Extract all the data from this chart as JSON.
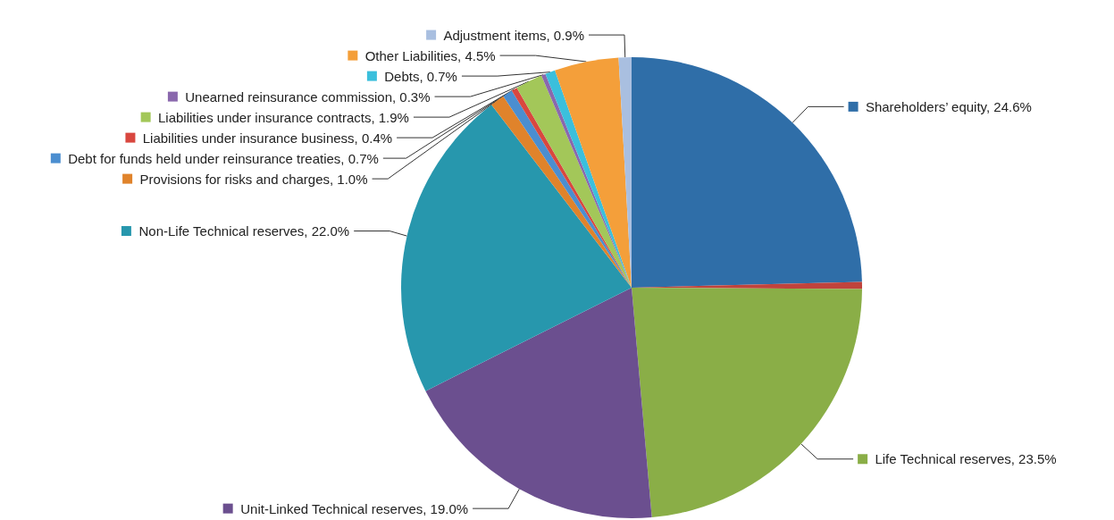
{
  "chart_data": {
    "type": "pie",
    "categories": [
      "Shareholders’ equity",
      null,
      "Life Technical reserves",
      "Unit-Linked Technical reserves",
      "Non-Life Technical reserves",
      "Provisions for risks and charges",
      "Debt for funds held under reinsurance treaties",
      "Liabilities under insurance business",
      "Liabilities under insurance contracts",
      "Unearned reinsurance commission",
      "Debts",
      "Other Liabilities",
      "Adjustment items"
    ],
    "values": [
      24.6,
      0.5,
      23.5,
      19.0,
      22.0,
      1.0,
      0.7,
      0.4,
      1.9,
      0.3,
      0.7,
      4.5,
      0.9
    ],
    "colors": [
      "#2f6ea8",
      "#c0433c",
      "#8aae47",
      "#6b4f8f",
      "#2797ad",
      "#e0832b",
      "#4b8ed0",
      "#d9473f",
      "#a3c759",
      "#8a68ad",
      "#3bbfdc",
      "#f49f3a",
      "#a9bfe0"
    ],
    "value_labels": [
      "24.6%",
      null,
      "23.5%",
      "19.0%",
      "22.0%",
      "1.0%",
      "0.7%",
      "0.4%",
      "1.9%",
      "0.3%",
      "0.7%",
      "4.5%",
      "0.9%"
    ],
    "legend": "left"
  }
}
